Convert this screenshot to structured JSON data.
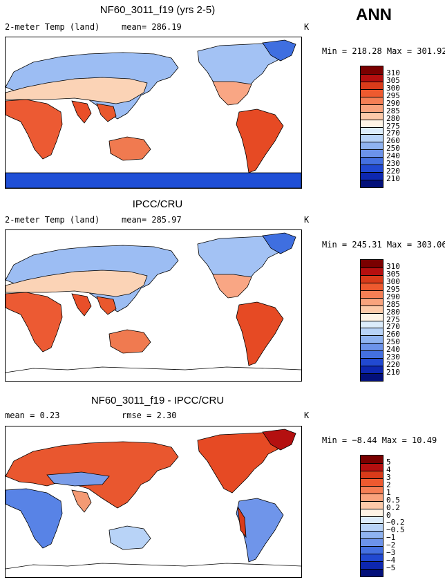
{
  "season": "ANN",
  "panels": [
    {
      "title": "NF60_3011_f19 (yrs 2-5)",
      "variable": "2-meter Temp (land)",
      "stat1": "mean= 286.19",
      "unit": "K",
      "minmax": "Min = 218.28 Max = 301.92",
      "colorbar": {
        "labels": [
          "310",
          "305",
          "300",
          "295",
          "290",
          "285",
          "280",
          "275",
          "270",
          "260",
          "250",
          "240",
          "230",
          "220",
          "210"
        ],
        "colors": [
          "#7a0000",
          "#b50f0f",
          "#d93b1a",
          "#ee5a2f",
          "#f57f55",
          "#f9a37d",
          "#fdcaa9",
          "#fff4e6",
          "#dcecfb",
          "#b8d3f7",
          "#8fb3f0",
          "#6c93ea",
          "#4470e0",
          "#2149d1",
          "#0d27b0",
          "#03107a"
        ]
      },
      "has_antarctica": true
    },
    {
      "title": "IPCC/CRU",
      "variable": "2-meter Temp (land)",
      "stat1": "mean= 285.97",
      "unit": "K",
      "minmax": "Min = 245.31 Max = 303.06",
      "colorbar": {
        "labels": [
          "310",
          "305",
          "300",
          "295",
          "290",
          "285",
          "280",
          "275",
          "270",
          "260",
          "250",
          "240",
          "230",
          "220",
          "210"
        ],
        "colors": [
          "#7a0000",
          "#b50f0f",
          "#d93b1a",
          "#ee5a2f",
          "#f57f55",
          "#f9a37d",
          "#fdcaa9",
          "#fff4e6",
          "#dcecfb",
          "#b8d3f7",
          "#8fb3f0",
          "#6c93ea",
          "#4470e0",
          "#2149d1",
          "#0d27b0",
          "#03107a"
        ]
      },
      "has_antarctica": false
    },
    {
      "title": "NF60_3011_f19 - IPCC/CRU",
      "stat1": "mean =   0.23",
      "stat2": "rmse =   2.30",
      "unit": "K",
      "minmax": "Min = −8.44 Max =  10.49",
      "colorbar": {
        "labels": [
          "5",
          "4",
          "3",
          "2",
          "1",
          "0.5",
          "0.2",
          "0",
          "−0.2",
          "−0.5",
          "−1",
          "−2",
          "−3",
          "−4",
          "−5"
        ],
        "colors": [
          "#7a0000",
          "#b50f0f",
          "#d93b1a",
          "#ee5a2f",
          "#f57f55",
          "#f9a37d",
          "#fdcaa9",
          "#fff4e6",
          "#dcecfb",
          "#b8d3f7",
          "#8fb3f0",
          "#6c93ea",
          "#4470e0",
          "#2149d1",
          "#0d27b0",
          "#03107a"
        ]
      },
      "has_antarctica": false
    }
  ]
}
